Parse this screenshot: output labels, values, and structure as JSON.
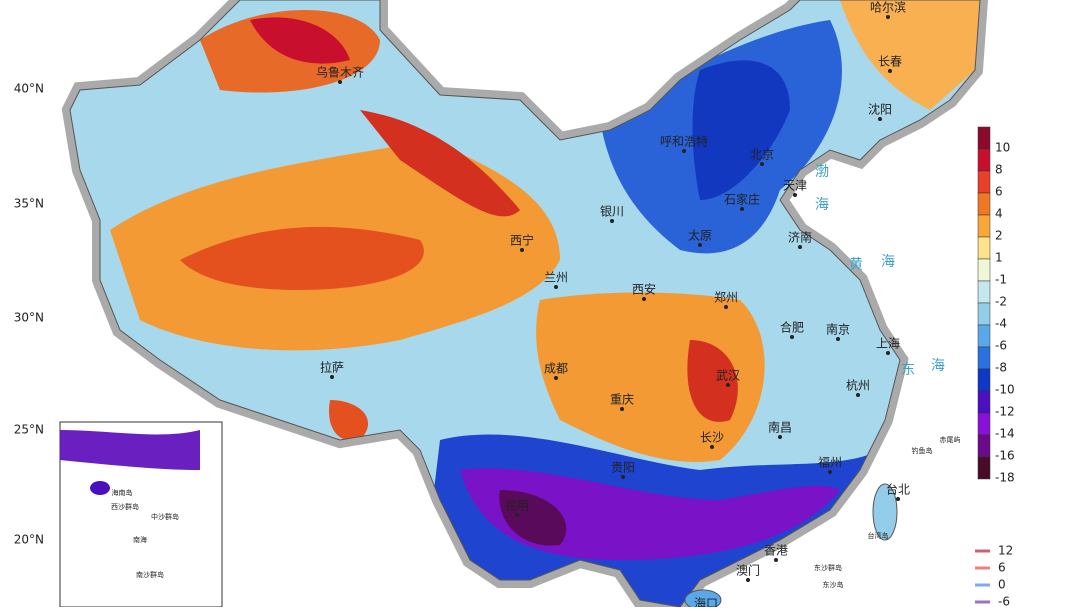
{
  "latitude_labels": [
    "40°N",
    "35°N",
    "30°N",
    "25°N",
    "20°N"
  ],
  "cities": [
    "哈尔滨",
    "长春",
    "沈阳",
    "乌鲁木齐",
    "呼和浩特",
    "北京",
    "天津",
    "银川",
    "石家庄",
    "太原",
    "济南",
    "西宁",
    "兰州",
    "西安",
    "郑州",
    "合肥",
    "南京",
    "上海",
    "拉萨",
    "成都",
    "武汉",
    "杭州",
    "重庆",
    "南昌",
    "长沙",
    "贵阳",
    "福州",
    "台北",
    "昆明",
    "香港",
    "澳门",
    "海口"
  ],
  "seas": [
    "渤",
    "海",
    "黄",
    "海",
    "东",
    "海"
  ],
  "islands": [
    "钓鱼岛",
    "赤尾屿",
    "台湾岛",
    "东沙群岛",
    "东沙岛"
  ],
  "inset_labels": [
    "海南岛",
    "西沙群岛",
    "中沙群岛",
    "南海",
    "南沙群岛"
  ],
  "colorbar": {
    "labels": [
      10,
      8,
      6,
      4,
      2,
      1,
      -1,
      -2,
      -4,
      -6,
      -8,
      -10,
      -12,
      -14,
      -16,
      -18
    ],
    "colors": [
      "#8b0a2a",
      "#c8102e",
      "#e8402a",
      "#f07820",
      "#f8a838",
      "#fde28a",
      "#eef8d8",
      "#c4e8ee",
      "#94cdea",
      "#5aa8ea",
      "#2a72e0",
      "#1038c8",
      "#4a10c0",
      "#8a10d8",
      "#6a0a8a",
      "#4a0a2a"
    ]
  },
  "contour_legend": {
    "labels": [
      12,
      6,
      0,
      -6
    ],
    "colors": [
      "#d06070",
      "#f08080",
      "#80a8f0",
      "#a070c0"
    ]
  }
}
